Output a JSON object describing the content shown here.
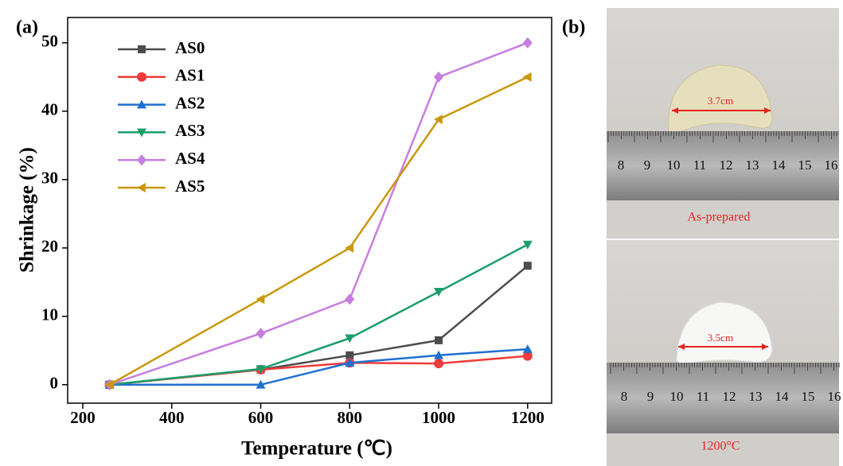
{
  "chart_data": {
    "type": "line",
    "panel_label": "(a)",
    "xlabel": "Temperature (℃)",
    "ylabel": "Shrinkage (%)",
    "x": [
      260,
      600,
      800,
      1000,
      1200
    ],
    "series": [
      {
        "name": "AS0",
        "color": "#4d4d4d",
        "marker": "square",
        "values": [
          0,
          2.2,
          4.3,
          6.5,
          17.4
        ]
      },
      {
        "name": "AS1",
        "color": "#f03b3b",
        "marker": "circle",
        "values": [
          0,
          2.2,
          3.2,
          3.1,
          4.2
        ]
      },
      {
        "name": "AS2",
        "color": "#1f6fd1",
        "marker": "triangle-up",
        "values": [
          0,
          0,
          3.2,
          4.3,
          5.2
        ]
      },
      {
        "name": "AS3",
        "color": "#1a9e6a",
        "marker": "triangle-down",
        "values": [
          0,
          2.3,
          6.8,
          13.6,
          20.5
        ]
      },
      {
        "name": "AS4",
        "color": "#c77ee0",
        "marker": "diamond",
        "values": [
          0,
          7.5,
          12.5,
          45,
          50
        ]
      },
      {
        "name": "AS5",
        "color": "#c9980c",
        "marker": "triangle-left",
        "values": [
          0,
          12.5,
          20,
          38.8,
          45
        ]
      }
    ],
    "xlim": [
      166,
      1254
    ],
    "ylim": [
      -2.7,
      53.7
    ],
    "xticks": [
      200,
      400,
      600,
      800,
      1000,
      1200
    ],
    "yticks": [
      0,
      10,
      20,
      30,
      40,
      50
    ],
    "legend": "upper left"
  },
  "panel_b": {
    "panel_label": "(b)",
    "top": {
      "measure": "3.7cm",
      "caption": "As-prepared"
    },
    "bottom": {
      "measure": "3.5cm",
      "caption": "1200°C"
    },
    "ruler_labels": [
      "8",
      "9",
      "10",
      "11",
      "12",
      "13",
      "14",
      "15",
      "16"
    ]
  }
}
